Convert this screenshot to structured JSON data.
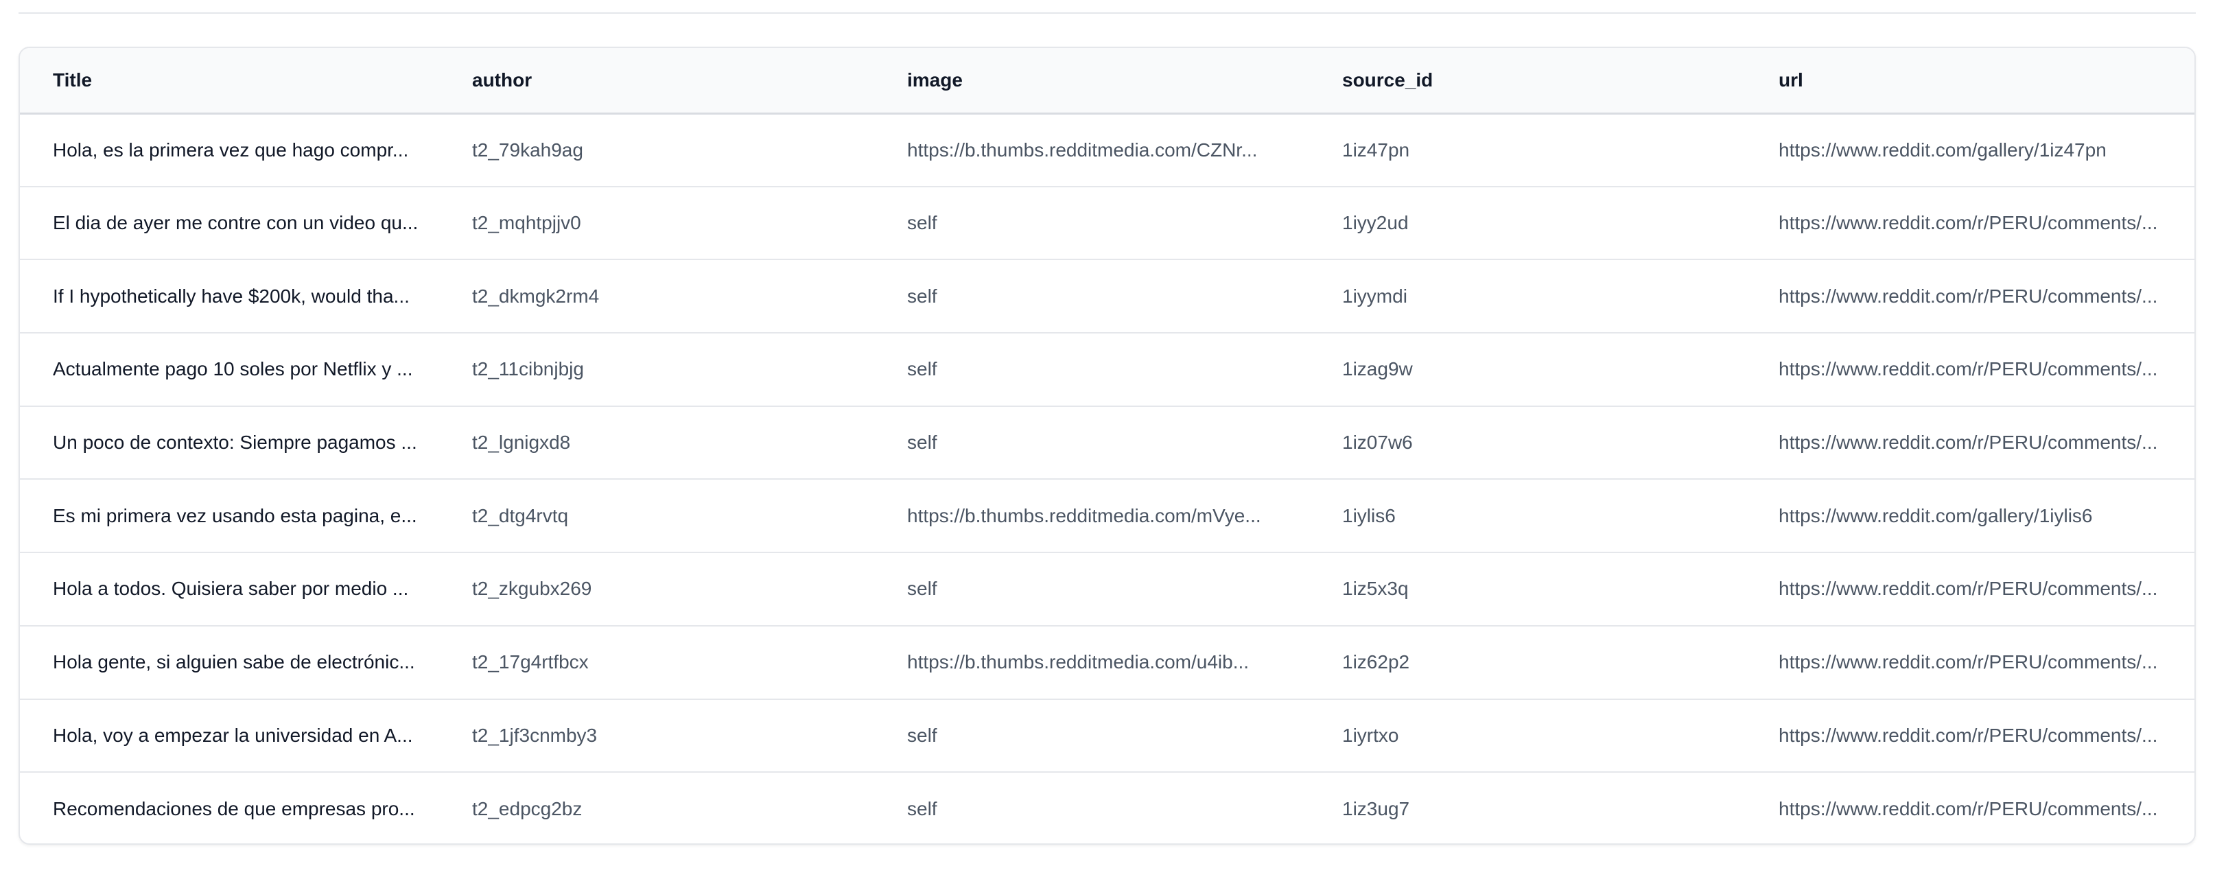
{
  "table": {
    "columns": [
      "Title",
      "author",
      "image",
      "source_id",
      "url"
    ],
    "rows": [
      {
        "title": "Hola, es la primera vez que hago compr...",
        "author": "t2_79kah9ag",
        "image": "https://b.thumbs.redditmedia.com/CZNr...",
        "source_id": "1iz47pn",
        "url": "https://www.reddit.com/gallery/1iz47pn"
      },
      {
        "title": "El dia de ayer me contre con un video qu...",
        "author": "t2_mqhtpjjv0",
        "image": "self",
        "source_id": "1iyy2ud",
        "url": "https://www.reddit.com/r/PERU/comments/..."
      },
      {
        "title": "If I hypothetically have $200k, would tha...",
        "author": "t2_dkmgk2rm4",
        "image": "self",
        "source_id": "1iyymdi",
        "url": "https://www.reddit.com/r/PERU/comments/..."
      },
      {
        "title": "Actualmente pago 10 soles por Netflix y ...",
        "author": "t2_11cibnjbjg",
        "image": "self",
        "source_id": "1izag9w",
        "url": "https://www.reddit.com/r/PERU/comments/..."
      },
      {
        "title": "Un poco de contexto: Siempre pagamos ...",
        "author": "t2_lgnigxd8",
        "image": "self",
        "source_id": "1iz07w6",
        "url": "https://www.reddit.com/r/PERU/comments/..."
      },
      {
        "title": "Es mi primera vez usando esta pagina, e...",
        "author": "t2_dtg4rvtq",
        "image": "https://b.thumbs.redditmedia.com/mVye...",
        "source_id": "1iylis6",
        "url": "https://www.reddit.com/gallery/1iylis6"
      },
      {
        "title": "Hola a todos. Quisiera saber por medio ...",
        "author": "t2_zkgubx269",
        "image": "self",
        "source_id": "1iz5x3q",
        "url": "https://www.reddit.com/r/PERU/comments/..."
      },
      {
        "title": "Hola gente, si alguien sabe de electrónic...",
        "author": "t2_17g4rtfbcx",
        "image": "https://b.thumbs.redditmedia.com/u4ib...",
        "source_id": "1iz62p2",
        "url": "https://www.reddit.com/r/PERU/comments/..."
      },
      {
        "title": "Hola, voy a empezar la universidad en A...",
        "author": "t2_1jf3cnmby3",
        "image": "self",
        "source_id": "1iyrtxo",
        "url": "https://www.reddit.com/r/PERU/comments/..."
      },
      {
        "title": "Recomendaciones de que empresas pro...",
        "author": "t2_edpcg2bz",
        "image": "self",
        "source_id": "1iz3ug7",
        "url": "https://www.reddit.com/r/PERU/comments/..."
      }
    ]
  }
}
